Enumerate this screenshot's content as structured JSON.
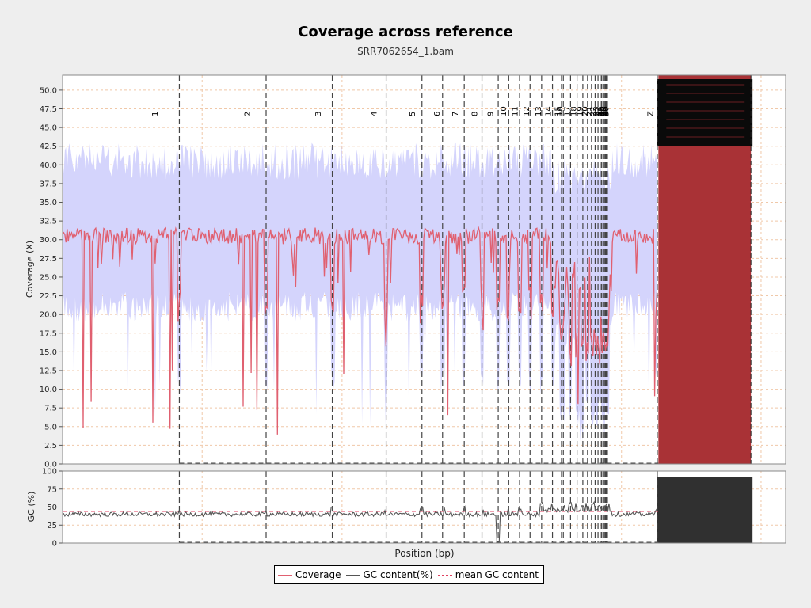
{
  "title": "Coverage across reference",
  "subtitle": "SRR7062654_1.bam",
  "colors": {
    "coverage": "#e06070",
    "band": "#d4d4fc",
    "gc": "#555555",
    "mean_gc": "#e04060",
    "plot_bg": "#ffffff",
    "page_bg": "#eeeeee",
    "red_block": "#a93236",
    "dark_block": "#303030"
  },
  "legend": {
    "coverage": "Coverage",
    "gc": "GC content(%)",
    "mean_gc": "mean GC content"
  },
  "chart_data": [
    {
      "type": "area",
      "ylabel": "Coverage (X)",
      "ylim": [
        0,
        52
      ],
      "yticks": [
        "0.0",
        "2.5",
        "5.0",
        "7.5",
        "10.0",
        "12.5",
        "15.0",
        "17.5",
        "20.0",
        "22.5",
        "25.0",
        "27.5",
        "30.0",
        "32.5",
        "35.0",
        "37.5",
        "40.0",
        "42.5",
        "45.0",
        "47.5",
        "50.0"
      ],
      "grid": true,
      "boundaries": [
        0.1615,
        0.2815,
        0.373,
        0.4475,
        0.497,
        0.5255,
        0.5555,
        0.58,
        0.6025,
        0.617,
        0.632,
        0.6465,
        0.6625,
        0.6775,
        0.69,
        0.6925,
        0.7025,
        0.7115,
        0.7195,
        0.726,
        0.7315,
        0.7365,
        0.7405,
        0.7435,
        0.7455,
        0.7475,
        0.749,
        0.7505,
        0.7515,
        0.7525,
        0.7535,
        0.8225
      ],
      "chromosome_labels": [
        {
          "name": "1",
          "x": 0.128
        },
        {
          "name": "2",
          "x": 0.256
        },
        {
          "name": "3",
          "x": 0.354
        },
        {
          "name": "4",
          "x": 0.431
        },
        {
          "name": "5",
          "x": 0.484
        },
        {
          "name": "6",
          "x": 0.518
        },
        {
          "name": "7",
          "x": 0.543
        },
        {
          "name": "8",
          "x": 0.57
        },
        {
          "name": "9",
          "x": 0.592
        },
        {
          "name": "10",
          "x": 0.61
        },
        {
          "name": "11",
          "x": 0.626
        },
        {
          "name": "12",
          "x": 0.642
        },
        {
          "name": "13",
          "x": 0.658
        },
        {
          "name": "14",
          "x": 0.672
        },
        {
          "name": "15",
          "x": 0.685
        },
        {
          "name": "16",
          "x": 0.688
        },
        {
          "name": "17",
          "x": 0.698
        },
        {
          "name": "18",
          "x": 0.707
        },
        {
          "name": "19",
          "x": 0.716
        },
        {
          "name": "20",
          "x": 0.723
        },
        {
          "name": "21",
          "x": 0.729
        },
        {
          "name": "22",
          "x": 0.734
        },
        {
          "name": "23",
          "x": 0.738
        },
        {
          "name": "24",
          "x": 0.742
        },
        {
          "name": "25",
          "x": 0.744
        },
        {
          "name": "26",
          "x": 0.746
        },
        {
          "name": "27",
          "x": 0.748
        },
        {
          "name": "28",
          "x": 0.749
        },
        {
          "name": "29",
          "x": 0.751
        },
        {
          "name": "30",
          "x": 0.752
        },
        {
          "name": "Z",
          "x": 0.813
        }
      ],
      "contig_region": [
        0.824,
        1.0
      ],
      "coverage_summary": {
        "mean": 30.5,
        "band_low": 21.0,
        "band_high": 40.5
      }
    },
    {
      "type": "line",
      "ylabel": "GC (%)",
      "ylim": [
        0,
        100
      ],
      "yticks": [
        "0",
        "25",
        "50",
        "75",
        "100"
      ],
      "xlabel": "Position (bp)",
      "mean_gc": 44,
      "gc_summary": {
        "typical": 40
      }
    }
  ]
}
